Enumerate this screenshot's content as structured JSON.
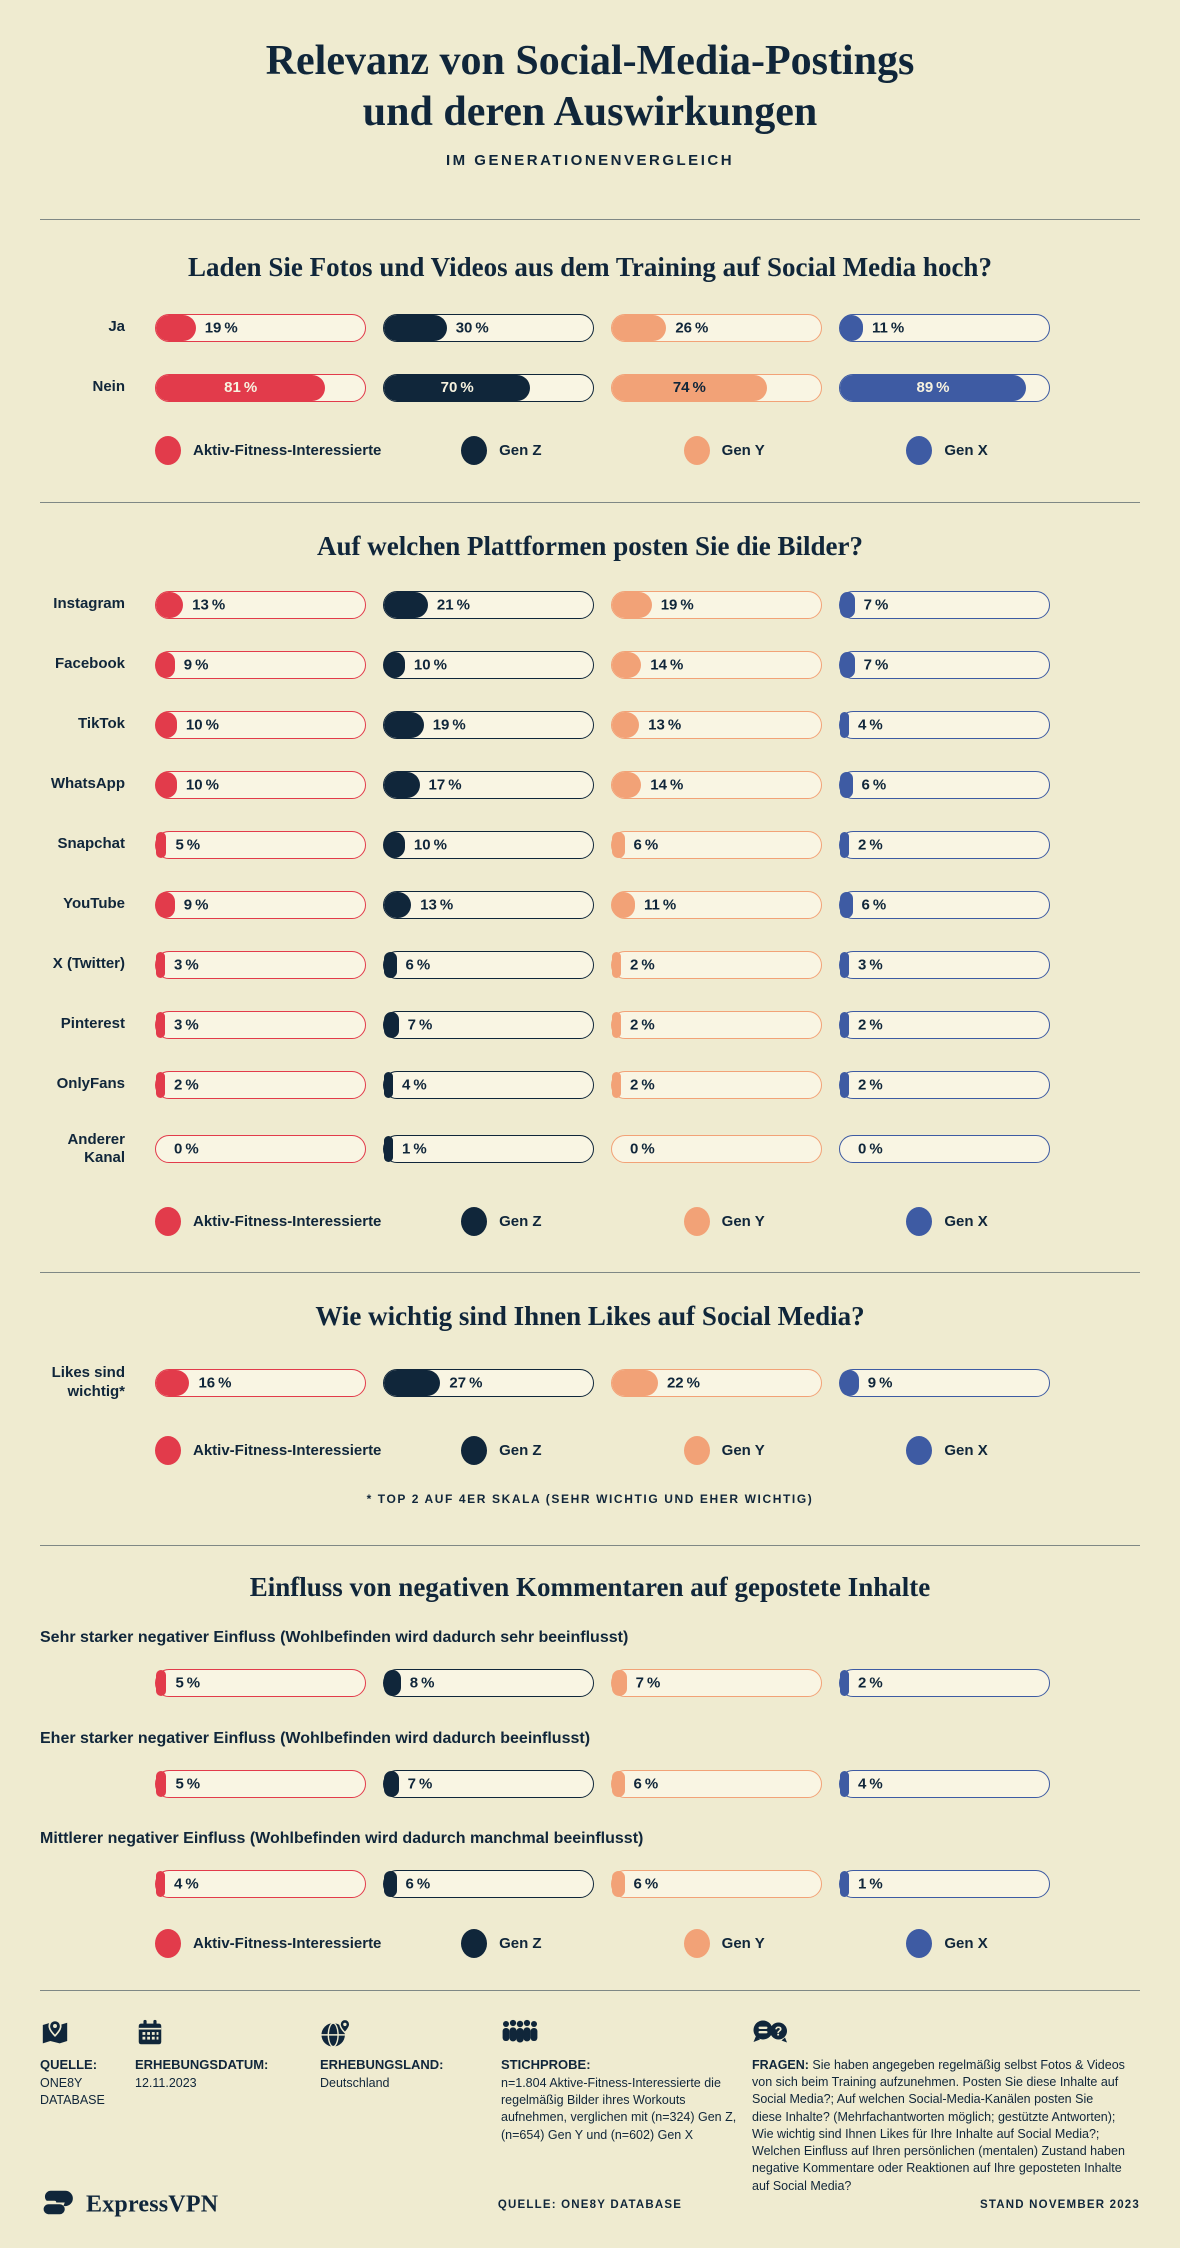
{
  "header": {
    "title_lines": [
      "Relevanz von Social-Media-Postings",
      "und deren Auswirkungen"
    ],
    "subtitle": "IM GENERATIONENVERGLEICH"
  },
  "colors": {
    "background": "#EFEBD0",
    "track": "#F9F5E3",
    "navy": "#10263A",
    "red": "#E23B4B",
    "peach": "#F2A277",
    "blue": "#3E5BA3",
    "cream_text": "#F7F2DF",
    "divider": "rgba(16,38,58,0.5)"
  },
  "legend": {
    "groups": [
      {
        "label": "Aktiv-Fitness-Interessierte",
        "color": "#E23B4B",
        "label_on_fill": "#F7F2DF"
      },
      {
        "label": "Gen Z",
        "color": "#10263A",
        "label_on_fill": "#F7F2DF"
      },
      {
        "label": "Gen Y",
        "color": "#F2A277",
        "label_on_fill": "#10263A"
      },
      {
        "label": "Gen X",
        "color": "#3E5BA3",
        "label_on_fill": "#F7F2DF"
      }
    ]
  },
  "chart_data": [
    {
      "type": "bar",
      "title": "Laden Sie Fotos und Videos aus dem Training auf Social Media hoch?",
      "unit": "%",
      "xlim": [
        0,
        100
      ],
      "categories": [
        "Ja",
        "Nein"
      ],
      "series": [
        {
          "name": "Aktiv-Fitness-Interessierte",
          "values": [
            19,
            81
          ]
        },
        {
          "name": "Gen Z",
          "values": [
            30,
            70
          ]
        },
        {
          "name": "Gen Y",
          "values": [
            26,
            74
          ]
        },
        {
          "name": "Gen X",
          "values": [
            11,
            89
          ]
        }
      ],
      "legend_position": "bottom"
    },
    {
      "type": "bar",
      "title": "Auf welchen Plattformen posten Sie die Bilder?",
      "unit": "%",
      "xlim": [
        0,
        100
      ],
      "categories": [
        "Instagram",
        "Facebook",
        "TikTok",
        "WhatsApp",
        "Snapchat",
        "YouTube",
        "X (Twitter)",
        "Pinterest",
        "OnlyFans",
        "Anderer Kanal"
      ],
      "series": [
        {
          "name": "Aktiv-Fitness-Interessierte",
          "values": [
            13,
            9,
            10,
            10,
            5,
            9,
            3,
            3,
            2,
            0
          ]
        },
        {
          "name": "Gen Z",
          "values": [
            21,
            10,
            19,
            17,
            10,
            13,
            6,
            7,
            4,
            1
          ]
        },
        {
          "name": "Gen Y",
          "values": [
            19,
            14,
            13,
            14,
            6,
            11,
            2,
            2,
            2,
            0
          ]
        },
        {
          "name": "Gen X",
          "values": [
            7,
            7,
            4,
            6,
            2,
            6,
            3,
            2,
            2,
            0
          ]
        }
      ],
      "legend_position": "bottom"
    },
    {
      "type": "bar",
      "title": "Wie wichtig sind Ihnen Likes auf Social Media?",
      "unit": "%",
      "xlim": [
        0,
        100
      ],
      "categories": [
        "Likes sind wichtig*"
      ],
      "series": [
        {
          "name": "Aktiv-Fitness-Interessierte",
          "values": [
            16
          ]
        },
        {
          "name": "Gen Z",
          "values": [
            27
          ]
        },
        {
          "name": "Gen Y",
          "values": [
            22
          ]
        },
        {
          "name": "Gen X",
          "values": [
            9
          ]
        }
      ],
      "legend_position": "bottom",
      "footnote": "* TOP 2 AUF 4ER SKALA (SEHR WICHTIG UND EHER WICHTIG)"
    },
    {
      "type": "bar",
      "title": "Einfluss von negativen Kommentaren auf gepostete Inhalte",
      "unit": "%",
      "xlim": [
        0,
        100
      ],
      "categories": [
        "Sehr starker negativer Einfluss (Wohlbefinden wird dadurch sehr beeinflusst)",
        "Eher starker negativer Einfluss (Wohlbefinden wird dadurch beeinflusst)",
        "Mittlerer negativer Einfluss (Wohlbefinden wird dadurch manchmal beeinflusst)"
      ],
      "series": [
        {
          "name": "Aktiv-Fitness-Interessierte",
          "values": [
            5,
            5,
            4
          ]
        },
        {
          "name": "Gen Z",
          "values": [
            8,
            7,
            6
          ]
        },
        {
          "name": "Gen Y",
          "values": [
            7,
            6,
            6
          ]
        },
        {
          "name": "Gen X",
          "values": [
            2,
            4,
            1
          ]
        }
      ],
      "legend_position": "bottom"
    }
  ],
  "footer": {
    "items": [
      {
        "icon": "map-pin-icon",
        "label": "QUELLE:",
        "text": "ONE8Y DATABASE"
      },
      {
        "icon": "calendar-icon",
        "label": "ERHEBUNGSDATUM:",
        "text": "12.11.2023"
      },
      {
        "icon": "globe-pin-icon",
        "label": "ERHEBUNGSLAND:",
        "text": "Deutschland"
      },
      {
        "icon": "people-icon",
        "label": "STICHPROBE:",
        "text": "n=1.804 Aktive-Fitness-Interessierte die regelmäßig Bilder ihres Workouts aufnehmen, verglichen mit (n=324) Gen Z, (n=654) Gen Y und (n=602) Gen X"
      },
      {
        "icon": "speech-question-icon",
        "label": "FRAGEN:",
        "text": "Sie haben angegeben regelmäßig selbst Fotos & Videos von sich beim Training aufzunehmen. Posten Sie diese Inhalte auf Social Media?; Auf welchen Social-Media-Kanälen posten Sie diese Inhalte? (Mehrfachantworten möglich; gestützte Antworten); Wie wichtig sind Ihnen Likes für Ihre Inhalte auf Social Media?; Welchen Einfluss auf Ihren persönlichen (mentalen) Zustand haben negative Kommentare oder Reaktionen auf Ihre geposteten Inhalte auf Social Media?"
      }
    ]
  },
  "bottom_bar": {
    "brand": "ExpressVPN",
    "source": "QUELLE: ONE8Y DATABASE",
    "stand": "STAND NOVEMBER 2023"
  }
}
